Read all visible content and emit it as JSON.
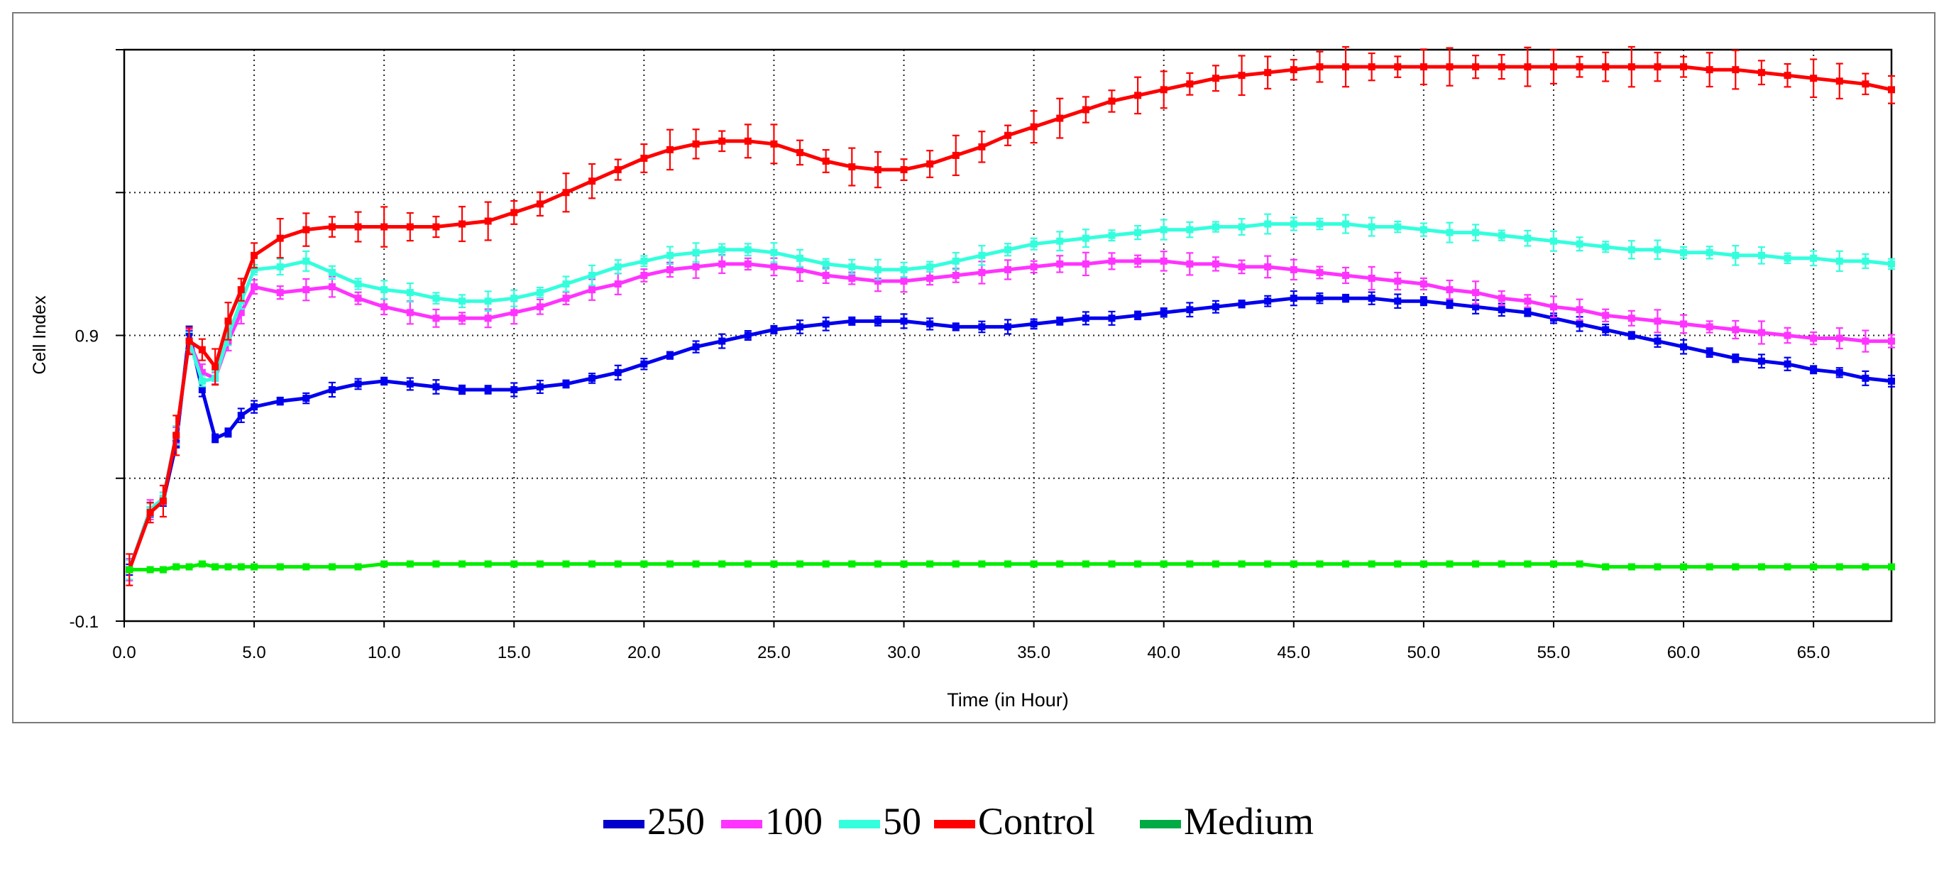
{
  "chart_data": {
    "type": "line",
    "title": "",
    "xlabel": "Time (in Hour)",
    "ylabel": "Cell Index",
    "xlim": [
      0,
      68
    ],
    "ylim": [
      -0.1,
      1.9
    ],
    "x_ticks": [
      "0.0",
      "5.0",
      "10.0",
      "15.0",
      "20.0",
      "25.0",
      "30.0",
      "35.0",
      "40.0",
      "45.0",
      "50.0",
      "55.0",
      "60.0",
      "65.0"
    ],
    "x_tick_values": [
      0,
      5,
      10,
      15,
      20,
      25,
      30,
      35,
      40,
      45,
      50,
      55,
      60,
      65
    ],
    "y_tick_labels": [
      {
        "value": 0.9,
        "label": "0.9"
      },
      {
        "value": -0.1,
        "label": "-0.1"
      }
    ],
    "y_minor_ticks": [
      -0.1,
      0.4,
      0.9,
      1.4,
      1.9
    ],
    "grid": true,
    "legend_position": "bottom",
    "x": [
      0.2,
      1,
      1.5,
      2,
      2.5,
      3,
      3.5,
      4,
      4.5,
      5,
      6,
      7,
      8,
      9,
      10,
      11,
      12,
      13,
      14,
      15,
      16,
      17,
      18,
      19,
      20,
      21,
      22,
      23,
      24,
      25,
      26,
      27,
      28,
      29,
      30,
      31,
      32,
      33,
      34,
      35,
      36,
      37,
      38,
      39,
      40,
      41,
      42,
      43,
      44,
      45,
      46,
      47,
      48,
      49,
      50,
      51,
      52,
      53,
      54,
      55,
      56,
      57,
      58,
      59,
      60,
      61,
      62,
      63,
      64,
      65,
      66,
      67,
      68
    ],
    "series": [
      {
        "name": "250",
        "color": "#0000ee",
        "error": 0.025,
        "values": [
          0.08,
          0.29,
          0.32,
          0.52,
          0.91,
          0.71,
          0.54,
          0.56,
          0.62,
          0.65,
          0.67,
          0.68,
          0.71,
          0.73,
          0.74,
          0.73,
          0.72,
          0.71,
          0.71,
          0.71,
          0.72,
          0.73,
          0.75,
          0.77,
          0.8,
          0.83,
          0.86,
          0.88,
          0.9,
          0.92,
          0.93,
          0.94,
          0.95,
          0.95,
          0.95,
          0.94,
          0.93,
          0.93,
          0.93,
          0.94,
          0.95,
          0.96,
          0.96,
          0.97,
          0.98,
          0.99,
          1.0,
          1.01,
          1.02,
          1.03,
          1.03,
          1.03,
          1.03,
          1.02,
          1.02,
          1.01,
          1.0,
          0.99,
          0.98,
          0.96,
          0.94,
          0.92,
          0.9,
          0.88,
          0.86,
          0.84,
          0.82,
          0.81,
          0.8,
          0.78,
          0.77,
          0.75,
          0.74
        ]
      },
      {
        "name": "100",
        "color": "#ff33ff",
        "error": 0.04,
        "values": [
          0.08,
          0.29,
          0.33,
          0.55,
          0.88,
          0.77,
          0.75,
          0.88,
          0.98,
          1.07,
          1.05,
          1.06,
          1.07,
          1.03,
          1.0,
          0.98,
          0.96,
          0.96,
          0.96,
          0.98,
          1.0,
          1.03,
          1.06,
          1.08,
          1.11,
          1.13,
          1.14,
          1.15,
          1.15,
          1.14,
          1.13,
          1.11,
          1.1,
          1.09,
          1.09,
          1.1,
          1.11,
          1.12,
          1.13,
          1.14,
          1.15,
          1.15,
          1.16,
          1.16,
          1.16,
          1.15,
          1.15,
          1.14,
          1.14,
          1.13,
          1.12,
          1.11,
          1.1,
          1.09,
          1.08,
          1.06,
          1.05,
          1.03,
          1.02,
          1.0,
          0.99,
          0.97,
          0.96,
          0.95,
          0.94,
          0.93,
          0.92,
          0.91,
          0.9,
          0.89,
          0.89,
          0.88,
          0.88
        ]
      },
      {
        "name": "50",
        "color": "#33ffdd",
        "error": 0.035,
        "values": [
          0.08,
          0.29,
          0.33,
          0.55,
          0.88,
          0.74,
          0.75,
          0.9,
          1.02,
          1.13,
          1.14,
          1.16,
          1.12,
          1.08,
          1.06,
          1.05,
          1.03,
          1.02,
          1.02,
          1.03,
          1.05,
          1.08,
          1.11,
          1.14,
          1.16,
          1.18,
          1.19,
          1.2,
          1.2,
          1.19,
          1.17,
          1.15,
          1.14,
          1.13,
          1.13,
          1.14,
          1.16,
          1.18,
          1.2,
          1.22,
          1.23,
          1.24,
          1.25,
          1.26,
          1.27,
          1.27,
          1.28,
          1.28,
          1.29,
          1.29,
          1.29,
          1.29,
          1.28,
          1.28,
          1.27,
          1.26,
          1.26,
          1.25,
          1.24,
          1.23,
          1.22,
          1.21,
          1.2,
          1.2,
          1.19,
          1.19,
          1.18,
          1.18,
          1.17,
          1.17,
          1.16,
          1.16,
          1.15
        ]
      },
      {
        "name": "Control",
        "color": "#ff0000",
        "error": 0.07,
        "values": [
          0.08,
          0.28,
          0.32,
          0.55,
          0.88,
          0.85,
          0.79,
          0.95,
          1.06,
          1.18,
          1.24,
          1.27,
          1.28,
          1.28,
          1.28,
          1.28,
          1.28,
          1.29,
          1.3,
          1.33,
          1.36,
          1.4,
          1.44,
          1.48,
          1.52,
          1.55,
          1.57,
          1.58,
          1.58,
          1.57,
          1.54,
          1.51,
          1.49,
          1.48,
          1.48,
          1.5,
          1.53,
          1.56,
          1.6,
          1.63,
          1.66,
          1.69,
          1.72,
          1.74,
          1.76,
          1.78,
          1.8,
          1.81,
          1.82,
          1.83,
          1.84,
          1.84,
          1.84,
          1.84,
          1.84,
          1.84,
          1.84,
          1.84,
          1.84,
          1.84,
          1.84,
          1.84,
          1.84,
          1.84,
          1.84,
          1.83,
          1.83,
          1.82,
          1.81,
          1.8,
          1.79,
          1.78,
          1.76
        ]
      },
      {
        "name": "Medium",
        "color": "#00ee00",
        "error": 0.008,
        "values": [
          0.08,
          0.08,
          0.08,
          0.09,
          0.09,
          0.1,
          0.09,
          0.09,
          0.09,
          0.09,
          0.09,
          0.09,
          0.09,
          0.09,
          0.1,
          0.1,
          0.1,
          0.1,
          0.1,
          0.1,
          0.1,
          0.1,
          0.1,
          0.1,
          0.1,
          0.1,
          0.1,
          0.1,
          0.1,
          0.1,
          0.1,
          0.1,
          0.1,
          0.1,
          0.1,
          0.1,
          0.1,
          0.1,
          0.1,
          0.1,
          0.1,
          0.1,
          0.1,
          0.1,
          0.1,
          0.1,
          0.1,
          0.1,
          0.1,
          0.1,
          0.1,
          0.1,
          0.1,
          0.1,
          0.1,
          0.1,
          0.1,
          0.1,
          0.1,
          0.1,
          0.1,
          0.09,
          0.09,
          0.09,
          0.09,
          0.09,
          0.09,
          0.09,
          0.09,
          0.09,
          0.09,
          0.09,
          0.09
        ]
      }
    ],
    "legend": [
      {
        "label": "250",
        "color": "#0000cc"
      },
      {
        "label": "100",
        "color": "#ff33ff"
      },
      {
        "label": "50",
        "color": "#33ffdd"
      },
      {
        "label": "Control",
        "color": "#ff0000"
      },
      {
        "label": "Medium",
        "color": "#00aa44"
      }
    ]
  }
}
